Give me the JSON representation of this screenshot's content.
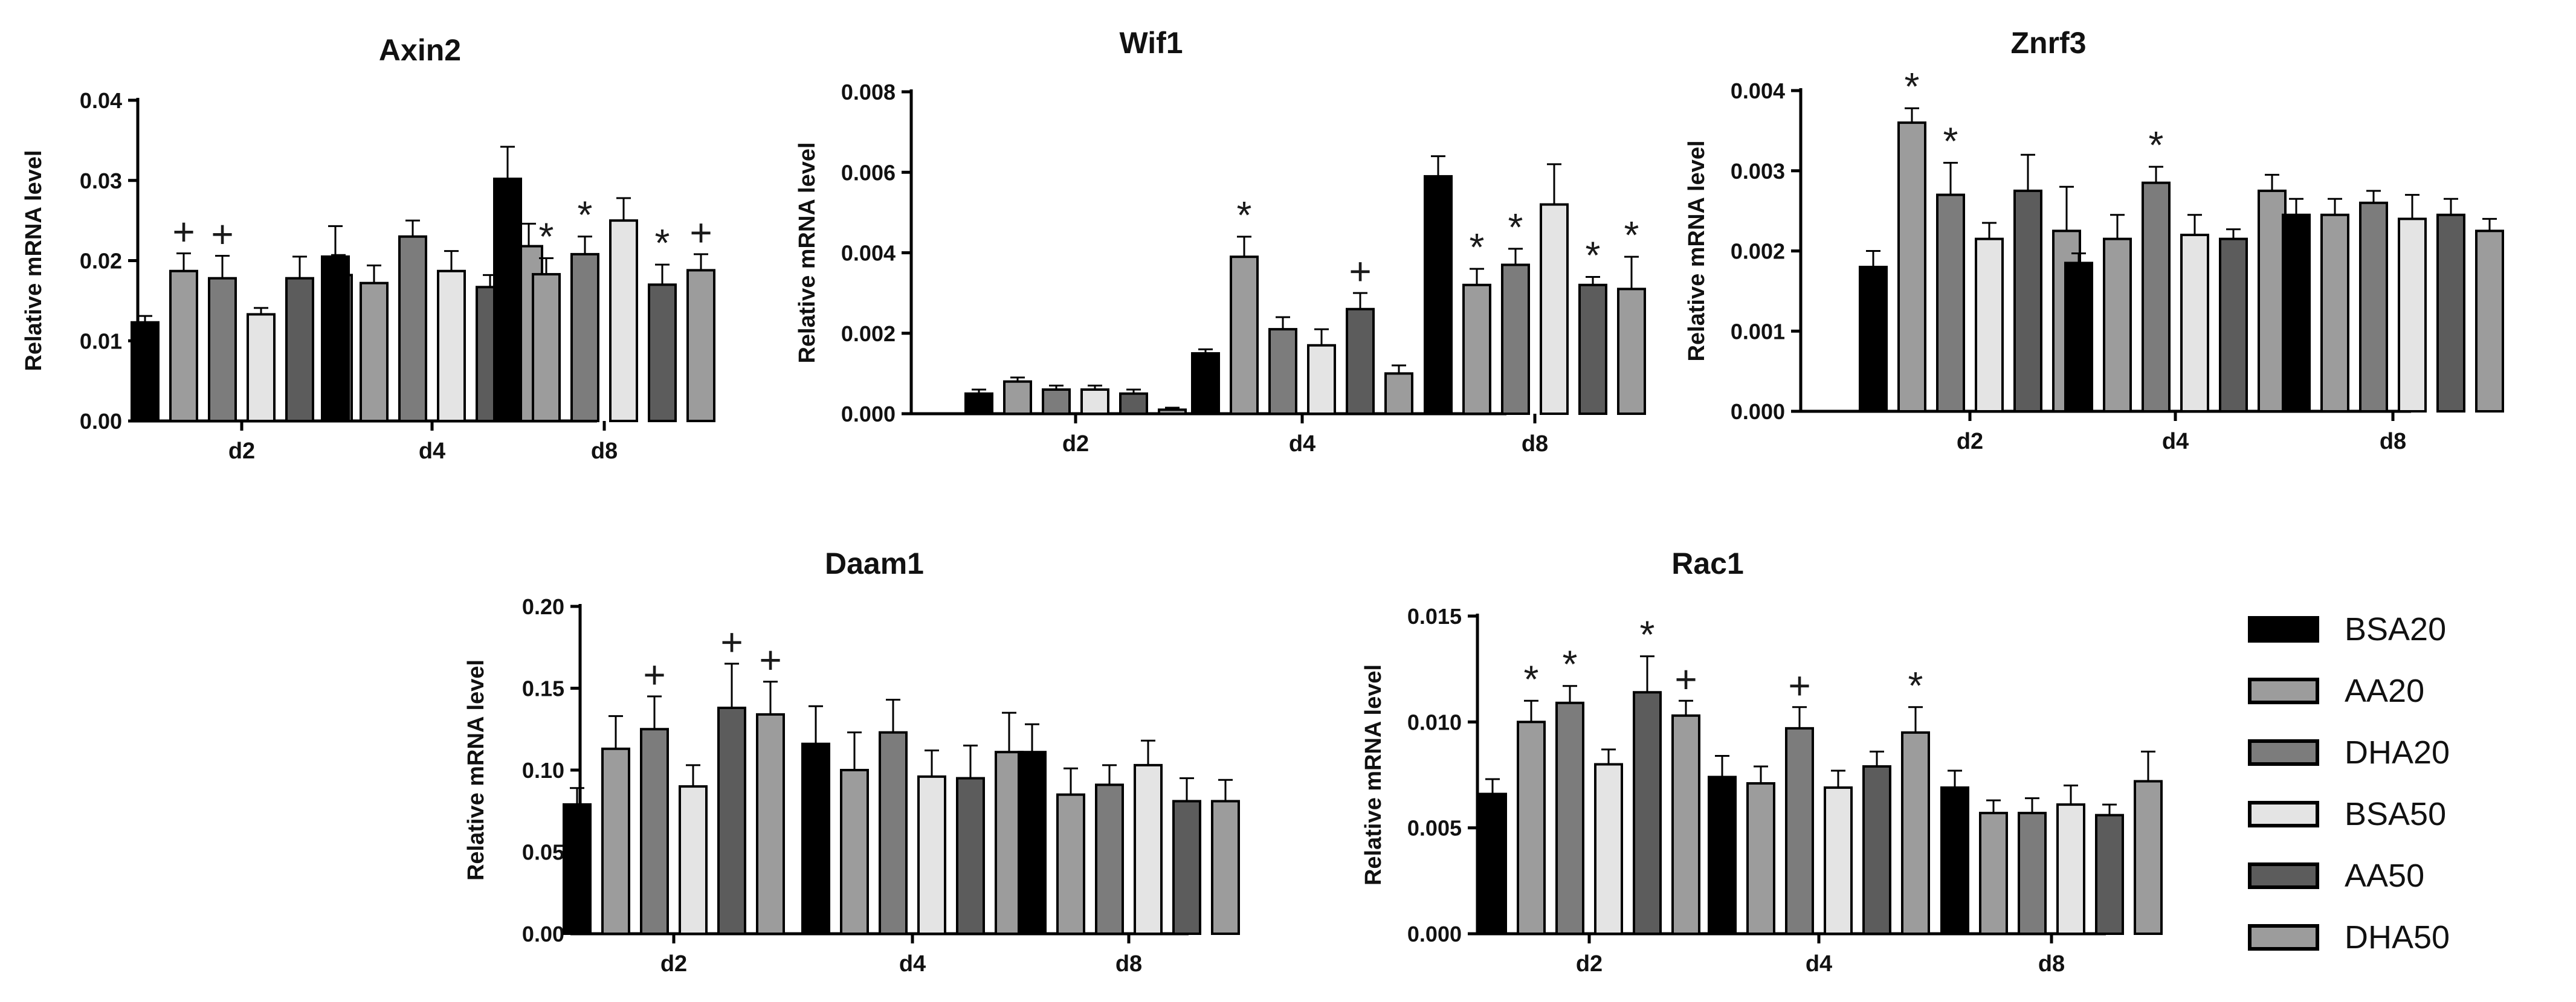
{
  "series_styles": [
    {
      "name": "BSA20",
      "color": "#000000"
    },
    {
      "name": "AA20",
      "color": "#9c9c9c"
    },
    {
      "name": "DHA20",
      "color": "#7c7c7c"
    },
    {
      "name": "BSA50",
      "color": "#e4e4e4"
    },
    {
      "name": "AA50",
      "color": "#5c5c5c"
    },
    {
      "name": "DHA50",
      "color": "#9c9c9c"
    }
  ],
  "chart_data": [
    {
      "type": "bar",
      "title": "Axin2",
      "ylabel": "Relative mRNA level",
      "xlabel": "",
      "categories": [
        "d2",
        "d4",
        "d8"
      ],
      "ylim": [
        0,
        0.04
      ],
      "yticks": [
        "0.00",
        "0.01",
        "0.02",
        "0.03",
        "0.04"
      ],
      "series": [
        {
          "name": "BSA20",
          "values": [
            0.0123,
            0.0205,
            0.0302
          ],
          "errors": [
            0.0008,
            0.0038,
            0.004
          ],
          "marks": [
            "",
            "",
            ""
          ]
        },
        {
          "name": "AA20",
          "values": [
            0.0187,
            0.0172,
            0.0183
          ],
          "errors": [
            0.0022,
            0.0022,
            0.002
          ],
          "marks": [
            "+",
            "",
            "*"
          ]
        },
        {
          "name": "DHA20",
          "values": [
            0.0178,
            0.023,
            0.0208
          ],
          "errors": [
            0.0028,
            0.002,
            0.0022
          ],
          "marks": [
            "+",
            "",
            "*"
          ]
        },
        {
          "name": "BSA50",
          "values": [
            0.0133,
            0.0187,
            0.025
          ],
          "errors": [
            0.0008,
            0.0025,
            0.0028
          ],
          "marks": [
            "",
            "",
            ""
          ]
        },
        {
          "name": "AA50",
          "values": [
            0.0178,
            0.0167,
            0.017
          ],
          "errors": [
            0.0027,
            0.0015,
            0.0025
          ],
          "marks": [
            "",
            "",
            "*"
          ]
        },
        {
          "name": "DHA50",
          "values": [
            0.0182,
            0.0218,
            0.0188
          ],
          "errors": [
            0.0025,
            0.0028,
            0.002
          ],
          "marks": [
            "",
            "",
            "+"
          ]
        }
      ]
    },
    {
      "type": "bar",
      "title": "Wif1",
      "ylabel": "Relative mRNA level",
      "xlabel": "",
      "categories": [
        "d2",
        "d4",
        "d8"
      ],
      "ylim": [
        0,
        0.008
      ],
      "yticks": [
        "0.000",
        "0.002",
        "0.004",
        "0.006",
        "0.008"
      ],
      "series": [
        {
          "name": "BSA20",
          "values": [
            0.0005,
            0.0015,
            0.0059
          ],
          "errors": [
            0.0001,
            0.0001,
            0.0005
          ],
          "marks": [
            "",
            "",
            ""
          ]
        },
        {
          "name": "AA20",
          "values": [
            0.0008,
            0.0039,
            0.0032
          ],
          "errors": [
            0.0001,
            0.0005,
            0.0004
          ],
          "marks": [
            "",
            "*",
            "*"
          ]
        },
        {
          "name": "DHA20",
          "values": [
            0.0006,
            0.0021,
            0.0037
          ],
          "errors": [
            0.0001,
            0.0003,
            0.0004
          ],
          "marks": [
            "",
            "",
            "*"
          ]
        },
        {
          "name": "BSA50",
          "values": [
            0.0006,
            0.0017,
            0.0052
          ],
          "errors": [
            0.0001,
            0.0004,
            0.001
          ],
          "marks": [
            "",
            "",
            ""
          ]
        },
        {
          "name": "AA50",
          "values": [
            0.0005,
            0.0026,
            0.0032
          ],
          "errors": [
            0.0001,
            0.0004,
            0.0002
          ],
          "marks": [
            "",
            "+",
            "*"
          ]
        },
        {
          "name": "DHA50",
          "values": [
            0.0001,
            0.001,
            0.0031
          ],
          "errors": [
            5e-05,
            0.0002,
            0.0008
          ],
          "marks": [
            "",
            "",
            "*"
          ]
        }
      ]
    },
    {
      "type": "bar",
      "title": "Znrf3",
      "ylabel": "Relative mRNA level",
      "xlabel": "",
      "categories": [
        "d2",
        "d4",
        "d8"
      ],
      "ylim": [
        0,
        0.004
      ],
      "yticks": [
        "0.000",
        "0.001",
        "0.002",
        "0.003",
        "0.004"
      ],
      "series": [
        {
          "name": "BSA20",
          "values": [
            0.0018,
            0.00185,
            0.00245
          ],
          "errors": [
            0.0002,
            0.00012,
            0.0002
          ],
          "marks": [
            "",
            "",
            ""
          ]
        },
        {
          "name": "AA20",
          "values": [
            0.0036,
            0.00215,
            0.00245
          ],
          "errors": [
            0.00018,
            0.0003,
            0.0002
          ],
          "marks": [
            "*",
            "",
            ""
          ]
        },
        {
          "name": "DHA20",
          "values": [
            0.0027,
            0.00285,
            0.0026
          ],
          "errors": [
            0.0004,
            0.0002,
            0.00015
          ],
          "marks": [
            "*",
            "*",
            ""
          ]
        },
        {
          "name": "BSA50",
          "values": [
            0.00215,
            0.0022,
            0.0024
          ],
          "errors": [
            0.0002,
            0.00025,
            0.0003
          ],
          "marks": [
            "",
            "",
            ""
          ]
        },
        {
          "name": "AA50",
          "values": [
            0.00275,
            0.00215,
            0.00245
          ],
          "errors": [
            0.00045,
            0.00012,
            0.0002
          ],
          "marks": [
            "",
            "",
            ""
          ]
        },
        {
          "name": "DHA50",
          "values": [
            0.00225,
            0.00275,
            0.00225
          ],
          "errors": [
            0.00055,
            0.0002,
            0.00015
          ],
          "marks": [
            "",
            "",
            ""
          ]
        }
      ]
    },
    {
      "type": "bar",
      "title": "Daam1",
      "ylabel": "Relative mRNA level",
      "xlabel": "",
      "categories": [
        "d2",
        "d4",
        "d8"
      ],
      "ylim": [
        0,
        0.2
      ],
      "yticks": [
        "0.00",
        "0.05",
        "0.10",
        "0.15",
        "0.20"
      ],
      "series": [
        {
          "name": "BSA20",
          "values": [
            0.079,
            0.116,
            0.111
          ],
          "errors": [
            0.01,
            0.023,
            0.017
          ],
          "marks": [
            "",
            "",
            ""
          ]
        },
        {
          "name": "AA20",
          "values": [
            0.113,
            0.1,
            0.085
          ],
          "errors": [
            0.02,
            0.023,
            0.016
          ],
          "marks": [
            "",
            "",
            ""
          ]
        },
        {
          "name": "DHA20",
          "values": [
            0.125,
            0.123,
            0.091
          ],
          "errors": [
            0.02,
            0.02,
            0.012
          ],
          "marks": [
            "+",
            "",
            ""
          ]
        },
        {
          "name": "BSA50",
          "values": [
            0.09,
            0.096,
            0.103
          ],
          "errors": [
            0.013,
            0.016,
            0.015
          ],
          "marks": [
            "",
            "",
            ""
          ]
        },
        {
          "name": "AA50",
          "values": [
            0.138,
            0.095,
            0.081
          ],
          "errors": [
            0.027,
            0.02,
            0.014
          ],
          "marks": [
            "+",
            "",
            ""
          ]
        },
        {
          "name": "DHA50",
          "values": [
            0.134,
            0.111,
            0.081
          ],
          "errors": [
            0.02,
            0.024,
            0.013
          ],
          "marks": [
            "+",
            "",
            ""
          ]
        }
      ]
    },
    {
      "type": "bar",
      "title": "Rac1",
      "ylabel": "Relative mRNA level",
      "xlabel": "",
      "categories": [
        "d2",
        "d4",
        "d8"
      ],
      "ylim": [
        0,
        0.015
      ],
      "yticks": [
        "0.000",
        "0.005",
        "0.010",
        "0.015"
      ],
      "series": [
        {
          "name": "BSA20",
          "values": [
            0.0066,
            0.0074,
            0.0069
          ],
          "errors": [
            0.0007,
            0.001,
            0.0008
          ],
          "marks": [
            "",
            "",
            ""
          ]
        },
        {
          "name": "AA20",
          "values": [
            0.01,
            0.0071,
            0.0057
          ],
          "errors": [
            0.001,
            0.0008,
            0.0006
          ],
          "marks": [
            "*",
            "",
            ""
          ]
        },
        {
          "name": "DHA20",
          "values": [
            0.0109,
            0.0097,
            0.0057
          ],
          "errors": [
            0.0008,
            0.001,
            0.0007
          ],
          "marks": [
            "*",
            "+",
            ""
          ]
        },
        {
          "name": "BSA50",
          "values": [
            0.008,
            0.0069,
            0.0061
          ],
          "errors": [
            0.0007,
            0.0008,
            0.0009
          ],
          "marks": [
            "",
            "",
            ""
          ]
        },
        {
          "name": "AA50",
          "values": [
            0.0114,
            0.0079,
            0.0056
          ],
          "errors": [
            0.0017,
            0.0007,
            0.0005
          ],
          "marks": [
            "*",
            "",
            ""
          ]
        },
        {
          "name": "DHA50",
          "values": [
            0.0103,
            0.0095,
            0.0072
          ],
          "errors": [
            0.0007,
            0.0012,
            0.0014
          ],
          "marks": [
            "+",
            "*",
            ""
          ]
        }
      ]
    }
  ],
  "legend": {
    "items": [
      "BSA20",
      "AA20",
      "DHA20",
      "BSA50",
      "AA50",
      "DHA50"
    ]
  }
}
